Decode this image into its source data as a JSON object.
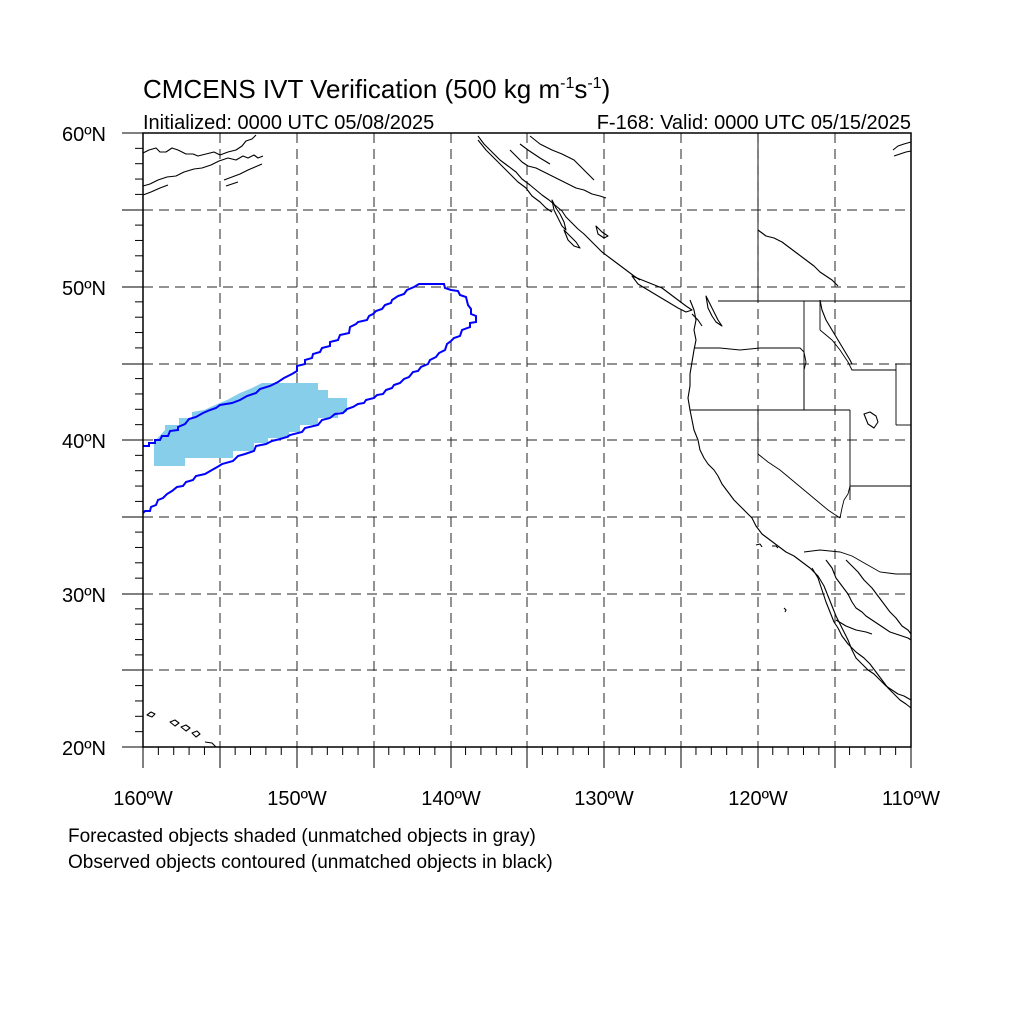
{
  "title": {
    "main": "CMCENS IVT Verification (500 kg m",
    "sup1": "-1",
    "mid": "s",
    "sup2": "-1",
    "close": ")"
  },
  "initialized": "Initialized: 0000 UTC 05/08/2025",
  "valid": "F-168: Valid: 0000 UTC 05/15/2025",
  "map": {
    "lon_range": [
      -160,
      -110
    ],
    "lat_range": [
      20,
      60
    ],
    "lat_ticks": [
      "20ºN",
      "30ºN",
      "40ºN",
      "50ºN",
      "60ºN"
    ],
    "lon_ticks": [
      "160ºW",
      "150ºW",
      "140ºW",
      "130ºW",
      "120ºW",
      "110ºW"
    ],
    "grid": "dashed every 5 degrees",
    "colors": {
      "forecast_fill": "#87ceeb",
      "observed_contour": "#0000ff",
      "coastline": "#000000"
    }
  },
  "legend": {
    "line1": "Forecasted objects shaded (unmatched objects in gray)",
    "line2": "Observed objects contoured (unmatched objects in black)"
  }
}
